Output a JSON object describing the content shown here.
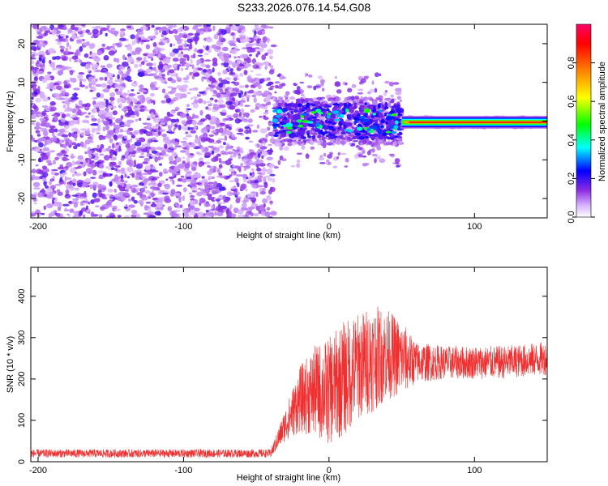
{
  "figure_title": "S233.2026.076.14.54.G08",
  "chart_data": [
    {
      "type": "heatmap",
      "title": "S233.2026.076.14.54.G08",
      "xlabel": "Height of straight line (km)",
      "ylabel": "Frequency (Hz)",
      "xlim": [
        -205,
        150
      ],
      "ylim": [
        -25,
        25
      ],
      "xticks": [
        -200,
        -100,
        0,
        100
      ],
      "yticks": [
        -20,
        -10,
        0,
        10,
        20
      ],
      "colorbar": {
        "label": "Normalized spectral amplitude",
        "range": [
          0,
          1
        ],
        "ticks": [
          "0.0",
          "0.2",
          "0.4",
          "0.6",
          "0.8"
        ],
        "colors": [
          "#ffffff",
          "#8a2be2",
          "#0000ff",
          "#00ffff",
          "#00ff00",
          "#ffff00",
          "#ff8000",
          "#ff0000",
          "#ff0066"
        ]
      },
      "regions": [
        {
          "x_range": [
            -205,
            -38
          ],
          "freq_range": [
            -25,
            25
          ],
          "amplitude": "low (~0.1-0.25), noise scattered over all frequencies"
        },
        {
          "x_range": [
            -38,
            50
          ],
          "freq_range": [
            -12,
            8
          ],
          "amplitude": "mixed (~0.2-0.5), signal emerging near 0 Hz"
        },
        {
          "x_range": [
            50,
            150
          ],
          "freq_range": [
            -1,
            1
          ],
          "amplitude": "high (~0.7-1.0), tone centred at about -0.3 Hz"
        }
      ],
      "grid": false
    },
    {
      "type": "line",
      "xlabel": "Height of straight line (km)",
      "ylabel": "SNR (10 * v/v)",
      "xlim": [
        -205,
        150
      ],
      "ylim": [
        0,
        470
      ],
      "xticks": [
        -200,
        -100,
        0,
        100
      ],
      "yticks": [
        0,
        100,
        200,
        300,
        400
      ],
      "color": "#f03030",
      "envelope": {
        "x": [
          -205,
          -100,
          -40,
          -30,
          -20,
          -10,
          0,
          10,
          20,
          30,
          40,
          50,
          60,
          80,
          100,
          120,
          150
        ],
        "mean": [
          20,
          20,
          20,
          90,
          150,
          170,
          170,
          200,
          230,
          250,
          260,
          250,
          240,
          240,
          240,
          240,
          250
        ],
        "spread": [
          10,
          10,
          10,
          40,
          80,
          110,
          130,
          140,
          130,
          130,
          110,
          90,
          50,
          40,
          40,
          40,
          40
        ]
      },
      "grid": false
    }
  ]
}
